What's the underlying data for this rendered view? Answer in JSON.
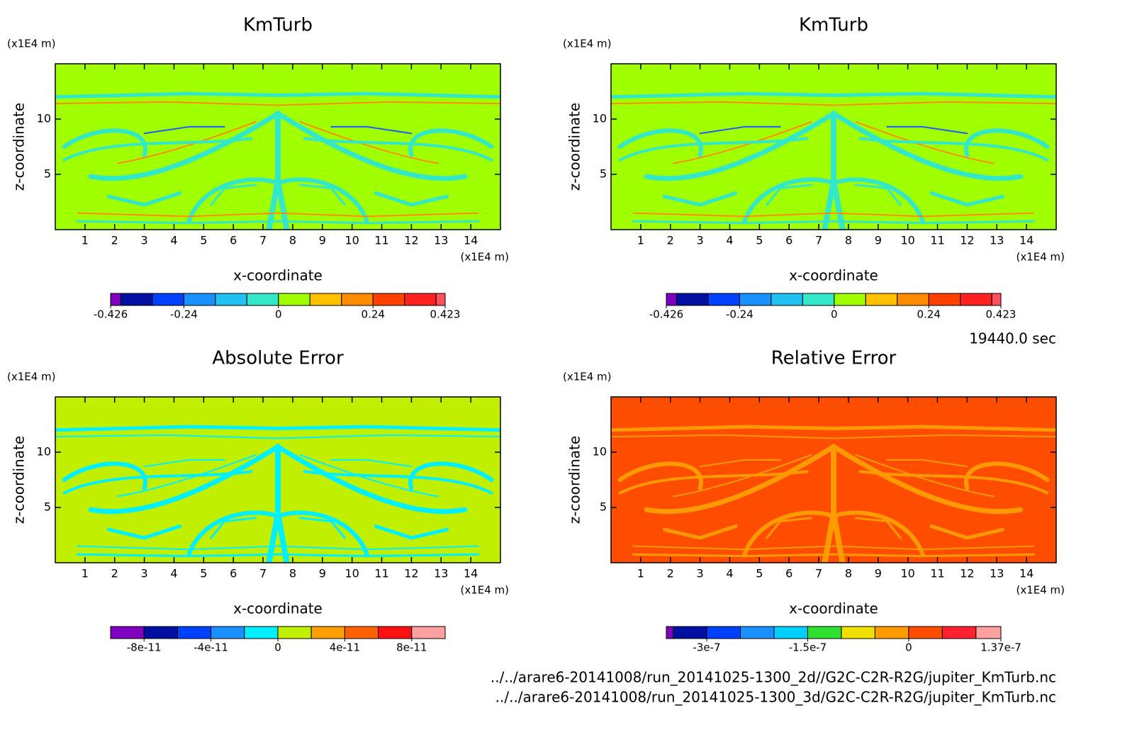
{
  "chart_data": [
    {
      "type": "contour",
      "title": "KmTurb",
      "x_label": "x-coordinate",
      "y_label": "z-coordinate",
      "x_unit": "(x1E4 m)",
      "y_unit": "(x1E4 m)",
      "xlim": [
        0,
        15
      ],
      "ylim": [
        0,
        15
      ],
      "xticks": [
        1,
        2,
        3,
        4,
        5,
        6,
        7,
        8,
        9,
        10,
        11,
        12,
        13,
        14
      ],
      "yticks": [
        5,
        10
      ],
      "field_color": "#a0ff00",
      "pattern_colors": [
        "#33e8c8",
        "#ff8c00",
        "#1a5cff"
      ],
      "colorbar": {
        "bounds": [
          -0.426,
          -0.4,
          -0.32,
          -0.24,
          -0.16,
          -0.08,
          0,
          0.08,
          0.16,
          0.24,
          0.32,
          0.4,
          0.423
        ],
        "colors": [
          "#8000c0",
          "#0010a0",
          "#0040ff",
          "#1890ff",
          "#20c0f0",
          "#33e8c8",
          "#a0ff00",
          "#ffc000",
          "#ff8c00",
          "#ff4000",
          "#ff2020",
          "#ff5060"
        ],
        "ticks": [
          -0.426,
          -0.24,
          0,
          0.24,
          0.423
        ]
      }
    },
    {
      "type": "contour",
      "title": "KmTurb",
      "x_label": "x-coordinate",
      "y_label": "z-coordinate",
      "x_unit": "(x1E4 m)",
      "y_unit": "(x1E4 m)",
      "xlim": [
        0,
        15
      ],
      "ylim": [
        0,
        15
      ],
      "xticks": [
        1,
        2,
        3,
        4,
        5,
        6,
        7,
        8,
        9,
        10,
        11,
        12,
        13,
        14
      ],
      "yticks": [
        5,
        10
      ],
      "field_color": "#a0ff00",
      "pattern_colors": [
        "#33e8c8",
        "#ff8c00",
        "#1a5cff"
      ],
      "colorbar": {
        "bounds": [
          -0.426,
          -0.4,
          -0.32,
          -0.24,
          -0.16,
          -0.08,
          0,
          0.08,
          0.16,
          0.24,
          0.32,
          0.4,
          0.423
        ],
        "colors": [
          "#8000c0",
          "#0010a0",
          "#0040ff",
          "#1890ff",
          "#20c0f0",
          "#33e8c8",
          "#a0ff00",
          "#ffc000",
          "#ff8c00",
          "#ff4000",
          "#ff2020",
          "#ff5060"
        ],
        "ticks": [
          -0.426,
          -0.24,
          0,
          0.24,
          0.423
        ]
      }
    },
    {
      "type": "contour",
      "title": "Absolute Error",
      "x_label": "x-coordinate",
      "y_label": "z-coordinate",
      "x_unit": "(x1E4 m)",
      "y_unit": "(x1E4 m)",
      "xlim": [
        0,
        15
      ],
      "ylim": [
        0,
        15
      ],
      "xticks": [
        1,
        2,
        3,
        4,
        5,
        6,
        7,
        8,
        9,
        10,
        11,
        12,
        13,
        14
      ],
      "yticks": [
        5,
        10
      ],
      "field_color": "#c0f000",
      "pattern_colors": [
        "#00f0ff",
        "#00f0ff",
        "#00f0ff"
      ],
      "colorbar": {
        "bounds": [
          -1e-10,
          -8e-11,
          -6e-11,
          -4e-11,
          -2e-11,
          0,
          2e-11,
          4e-11,
          6e-11,
          8e-11,
          1e-10
        ],
        "colors": [
          "#8000c0",
          "#0010a0",
          "#0040ff",
          "#1890ff",
          "#00f0ff",
          "#c0f000",
          "#ffa000",
          "#ff6000",
          "#ff1010",
          "#ffa0a0"
        ],
        "ticks": [
          -8e-11,
          -4e-11,
          0,
          4e-11,
          8e-11
        ]
      }
    },
    {
      "type": "contour",
      "title": "Relative Error",
      "x_label": "x-coordinate",
      "y_label": "z-coordinate",
      "x_unit": "(x1E4 m)",
      "y_unit": "(x1E4 m)",
      "xlim": [
        0,
        15
      ],
      "ylim": [
        0,
        15
      ],
      "xticks": [
        1,
        2,
        3,
        4,
        5,
        6,
        7,
        8,
        9,
        10,
        11,
        12,
        13,
        14
      ],
      "yticks": [
        5,
        10
      ],
      "field_color": "#ff4d00",
      "pattern_colors": [
        "#ff9a00",
        "#ff9a00",
        "#ff9a00"
      ],
      "colorbar": {
        "bounds": [
          -3.6e-07,
          -3.5e-07,
          -3e-07,
          -2.5e-07,
          -2e-07,
          -1.5e-07,
          -1e-07,
          -5e-08,
          0,
          5e-08,
          1e-07,
          1.37e-07
        ],
        "colors": [
          "#8000c0",
          "#0010a0",
          "#0040ff",
          "#1890ff",
          "#00d0ff",
          "#30e030",
          "#f0e000",
          "#ff9a00",
          "#ff4d00",
          "#ff2030",
          "#ffa0a0"
        ],
        "ticks": [
          -3e-07,
          -1.5e-07,
          0,
          1.37e-07
        ]
      }
    }
  ],
  "footer": {
    "time": "19440.0 sec",
    "files": [
      "../../arare6-20141008/run_20141025-1300_2d//G2C-C2R-R2G/jupiter_KmTurb.nc",
      "../../arare6-20141008/run_20141025-1300_3d/G2C-C2R-R2G/jupiter_KmTurb.nc"
    ]
  }
}
